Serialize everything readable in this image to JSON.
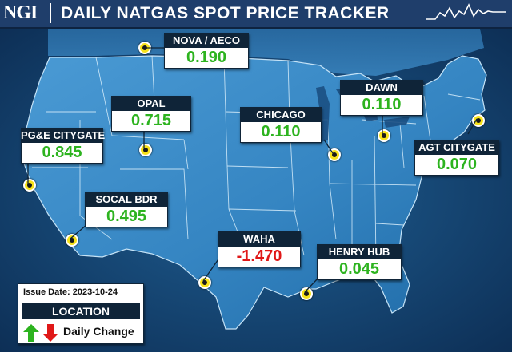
{
  "header": {
    "logo": "NGI",
    "title": "DAILY NATGAS SPOT PRICE TRACKER",
    "sparkline_icon": "price-trend-sparkline-icon"
  },
  "legend": {
    "issue_date": "Issue Date: 2023-10-24",
    "location_label": "LOCATION",
    "change_label": "Daily Change",
    "up_color": "#2db31f",
    "down_color": "#e01818",
    "up_icon": "green-up-arrow-icon",
    "down_icon": "red-down-arrow-icon"
  },
  "colors": {
    "positive": "#2db31f",
    "negative": "#e01818",
    "label_bg": "#0f2438",
    "marker": "#f7e21a"
  },
  "locations": [
    {
      "name": "NOVA / AECO",
      "change": "0.190",
      "direction": "up"
    },
    {
      "name": "OPAL",
      "change": "0.715",
      "direction": "up"
    },
    {
      "name": "DAWN",
      "change": "0.110",
      "direction": "up"
    },
    {
      "name": "CHICAGO",
      "change": "0.110",
      "direction": "up"
    },
    {
      "name": "PG&E CITYGATE",
      "change": "0.845",
      "direction": "up"
    },
    {
      "name": "AGT CITYGATE",
      "change": "0.070",
      "direction": "up"
    },
    {
      "name": "SOCAL BDR",
      "change": "0.495",
      "direction": "up"
    },
    {
      "name": "WAHA",
      "change": "-1.470",
      "direction": "down"
    },
    {
      "name": "HENRY HUB",
      "change": "0.045",
      "direction": "up"
    }
  ]
}
